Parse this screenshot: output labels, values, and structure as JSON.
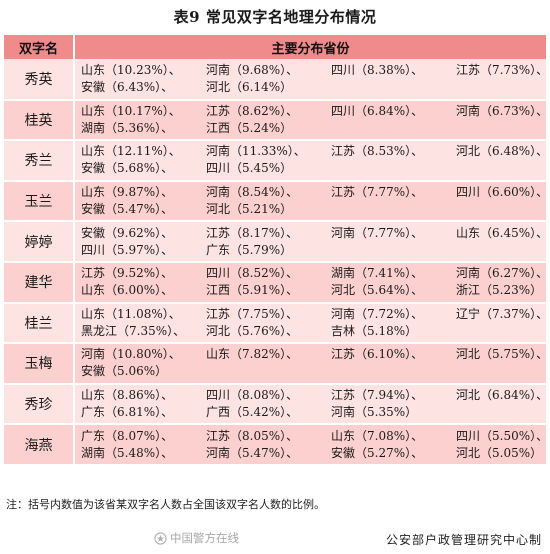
{
  "title": "表9  常见双字名地理分布情况",
  "header": {
    "col1": "双字名",
    "col2": "主要分布省份"
  },
  "rows": [
    {
      "name": "秀英",
      "line1": [
        "山东（10.23%）、",
        "河南（9.68%）、",
        "四川（8.38%）、",
        "江苏（7.73%）、"
      ],
      "line2": [
        "安徽（6.43%）、",
        "河北（6.14%）"
      ]
    },
    {
      "name": "桂英",
      "line1": [
        "山东（10.17%）、",
        "江苏（8.62%）、",
        "四川（6.84%）、",
        "河南（6.73%）、"
      ],
      "line2": [
        "湖南（5.36%）、",
        "江西（5.24%）"
      ]
    },
    {
      "name": "秀兰",
      "line1": [
        "山东（12.11%）、",
        "河南（11.33%）、",
        "江苏（8.53%）、",
        "河北（6.48%）、"
      ],
      "line2": [
        "安徽（5.68%）、",
        "四川（5.45%）"
      ]
    },
    {
      "name": "玉兰",
      "line1": [
        "山东（9.87%）、",
        "河南（8.54%）、",
        "江苏（7.77%）、",
        "四川（6.60%）、"
      ],
      "line2": [
        "安徽（5.47%）、",
        "河北（5.21%）"
      ]
    },
    {
      "name": "婷婷",
      "line1": [
        "安徽（9.62%）、",
        "江苏（8.17%）、",
        "河南（7.77%）、",
        "山东（6.45%）、"
      ],
      "line2": [
        "四川（5.97%）、",
        "广东（5.79%）"
      ]
    },
    {
      "name": "建华",
      "line1": [
        "江苏（9.52%）、",
        "四川（8.52%）、",
        "湖南（7.41%）、",
        "河南（6.27%）、"
      ],
      "line2": [
        "山东（6.00%）、",
        "江西（5.91%）、",
        "河北（5.64%）、",
        "浙江（5.23%）"
      ]
    },
    {
      "name": "桂兰",
      "line1": [
        "山东（11.08%）、",
        "江苏（7.75%）、",
        "河南（7.72%）、",
        "辽宁（7.37%）、"
      ],
      "line2": [
        "黑龙江（7.35%）、",
        "河北（5.76%）、",
        "吉林（5.18%）"
      ]
    },
    {
      "name": "玉梅",
      "line1": [
        "河南（10.80%）、",
        "山东（7.82%）、",
        "江苏（6.10%）、",
        "河北（5.75%）、"
      ],
      "line2": [
        "安徽（5.06%）"
      ]
    },
    {
      "name": "秀珍",
      "line1": [
        "山东（8.86%）、",
        "四川（8.08%）、",
        "江苏（7.94%）、",
        "河北（6.84%）、"
      ],
      "line2": [
        "广东（6.81%）、",
        "广西（5.42%）、",
        "河南（5.35%）"
      ]
    },
    {
      "name": "海燕",
      "line1": [
        "广东（8.07%）、",
        "江苏（8.05%）、",
        "山东（7.08%）、",
        "四川（5.50%）、"
      ],
      "line2": [
        "湖南（5.48%）、",
        "河南（5.47%）、",
        "安徽（5.27%）、",
        "河北（5.05%）"
      ]
    }
  ],
  "note": "注：括号内数值为该省某双字名人数占全国该双字名人数的比例。",
  "watermark": "中国警方在线",
  "source": "公安部户政管理研究中心制",
  "colors": {
    "header_bg": "#f08b8b",
    "row_light": "#fde3e2",
    "row_dark": "#fbd0cf"
  }
}
